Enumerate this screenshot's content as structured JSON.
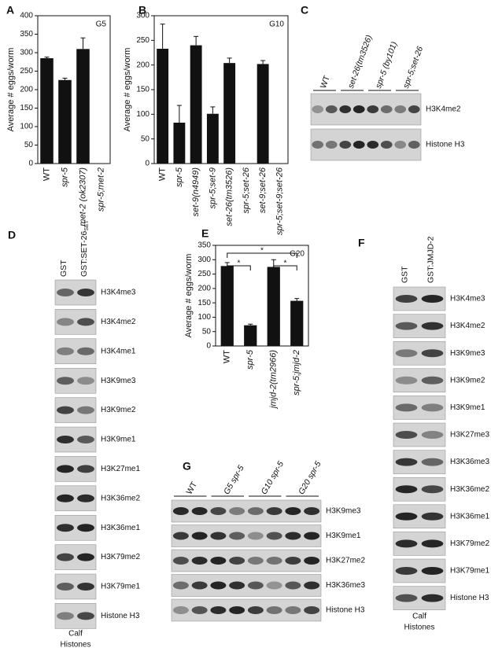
{
  "chart_data": [
    {
      "type": "bar",
      "label": "A",
      "title": "G5",
      "y_label": "Average # eggs/worm",
      "categories": [
        "WT",
        "spr-5",
        "met-2 (ok2307)",
        "spr-5;met-2"
      ],
      "values": [
        285,
        226,
        310,
        0
      ],
      "errors": [
        3,
        5,
        30,
        0
      ],
      "color": "#111111",
      "ylim": [
        0,
        400
      ],
      "yticks": [
        0,
        50,
        100,
        150,
        200,
        250,
        300,
        350,
        400
      ]
    },
    {
      "type": "bar",
      "label": "B",
      "title": "G10",
      "y_label": "Average # eggs/worm",
      "categories": [
        "WT",
        "spr-5",
        "set-9(n4949)",
        "spr-5;set-9",
        "set-26(tm3526)",
        "spr-5;set-26",
        "set-9;set-26",
        "spr-5;set-9;set-26"
      ],
      "values": [
        233,
        83,
        240,
        101,
        204,
        0,
        202,
        0
      ],
      "errors": [
        50,
        35,
        18,
        14,
        10,
        0,
        7,
        0
      ],
      "color": "#111111",
      "ylim": [
        0,
        300
      ],
      "yticks": [
        0,
        50,
        100,
        150,
        200,
        250,
        300
      ]
    },
    {
      "type": "bar",
      "label": "E",
      "title": "G20",
      "y_label": "Average # eggs/worm",
      "categories": [
        "WT",
        "spr-5",
        "jmjd-2(tm2966)",
        "spr-5;jmjd-2"
      ],
      "values": [
        278,
        72,
        275,
        157
      ],
      "errors": [
        12,
        4,
        25,
        8
      ],
      "color": "#111111",
      "ylim": [
        0,
        350
      ],
      "yticks": [
        0,
        50,
        100,
        150,
        200,
        250,
        300,
        350
      ],
      "annotations": [
        "*",
        "*",
        "*"
      ]
    }
  ],
  "blots": [
    {
      "label": "C",
      "lanes": [
        "WT",
        "set-26(tm3526)",
        "spr-5 (by101)",
        "spr-5;set-26"
      ],
      "rows": [
        "H3K4me2",
        "Histone H3"
      ]
    },
    {
      "label": "D",
      "lanes": [
        "GST",
        "GST:SET-26"
      ],
      "lane_subscript": "SET",
      "rows": [
        "H3K4me3",
        "H3K4me2",
        "H3K4me1",
        "H3K9me3",
        "H3K9me2",
        "H3K9me1",
        "H3K27me1",
        "H3K36me2",
        "H3K36me1",
        "H3K79me2",
        "H3K79me1",
        "Histone H3"
      ],
      "footer": [
        "Calf",
        "Histones"
      ]
    },
    {
      "label": "F",
      "lanes": [
        "GST",
        "GST:JMJD-2"
      ],
      "rows": [
        "H3K4me3",
        "H3K4me2",
        "H3K9me3",
        "H3K9me2",
        "H3K9me1",
        "H3K27me3",
        "H3K36me3",
        "H3K36me2",
        "H3K36me1",
        "H3K79me2",
        "H3K79me1",
        "Histone H3"
      ],
      "footer": [
        "Calf",
        "Histones"
      ]
    },
    {
      "label": "G",
      "lanes": [
        "WT",
        "G5 spr-5",
        "G10 spr-5",
        "G20 spr-5"
      ],
      "rows": [
        "H3K9me3",
        "H3K9me1",
        "H3K27me2",
        "H3K36me3",
        "Histone H3"
      ]
    }
  ]
}
